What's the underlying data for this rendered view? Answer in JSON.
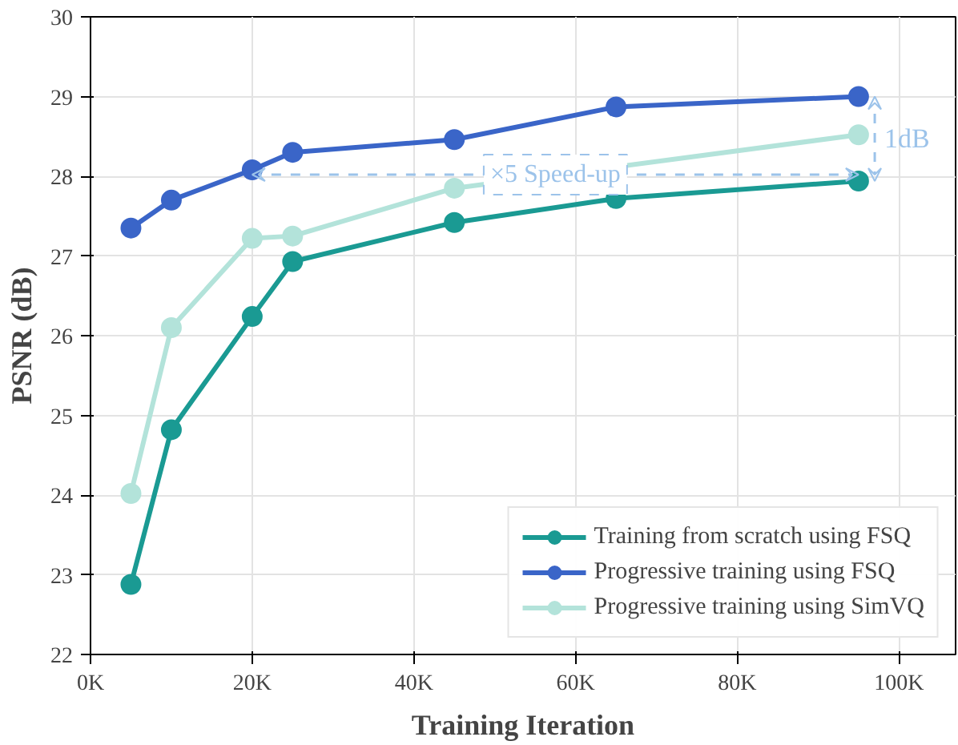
{
  "chart_data": {
    "type": "line",
    "xlabel": "Training Iteration",
    "ylabel": "PSNR (dB)",
    "x": [
      5000,
      10000,
      20000,
      25000,
      45000,
      65000,
      95000
    ],
    "series": [
      {
        "name": "Training from scratch using FSQ",
        "color": "#1a9a93",
        "values": [
          22.88,
          24.82,
          26.24,
          26.93,
          27.42,
          27.72,
          27.94
        ]
      },
      {
        "name": "Progressive training using FSQ",
        "color": "#3a65c8",
        "values": [
          27.35,
          27.7,
          28.08,
          28.3,
          28.46,
          28.87,
          29.0
        ]
      },
      {
        "name": "Progressive training using SimVQ",
        "color": "#b3e3da",
        "values": [
          24.02,
          26.1,
          27.22,
          27.25,
          27.85,
          null,
          28.52
        ]
      }
    ],
    "xlim": [
      0,
      107000
    ],
    "ylim": [
      22,
      30
    ],
    "xticks": [
      {
        "value": 0,
        "label": "0K"
      },
      {
        "value": 20000,
        "label": "20K"
      },
      {
        "value": 40000,
        "label": "40K"
      },
      {
        "value": 60000,
        "label": "60K"
      },
      {
        "value": 80000,
        "label": "80K"
      },
      {
        "value": 100000,
        "label": "100K"
      }
    ],
    "yticks": [
      22,
      23,
      24,
      25,
      26,
      27,
      28,
      29,
      30
    ],
    "annotations": [
      "×5 Speed-up",
      "1dB"
    ],
    "grid": true,
    "legend": "bottom right",
    "marker": "circle",
    "line_style": "solid"
  }
}
